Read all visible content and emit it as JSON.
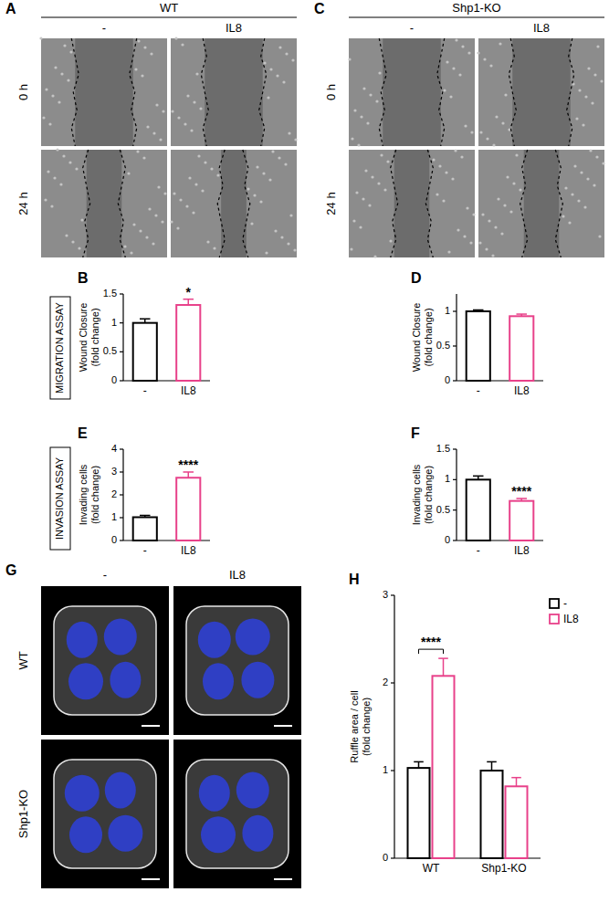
{
  "panels": [
    {
      "label": "A",
      "header": "WT",
      "columns": [
        "-",
        "IL8"
      ],
      "rows": [
        "0 h",
        "24 h"
      ]
    },
    {
      "label": "C",
      "header": "Shp1-KO",
      "columns": [
        "-",
        "IL8"
      ],
      "rows": [
        "0 h",
        "24 h"
      ]
    },
    {
      "label": "G",
      "columns": [
        "-",
        "IL8"
      ],
      "rows": [
        "WT",
        "Shp1-KO"
      ]
    }
  ],
  "side_labels": [
    "MIGRATION ASSAY",
    "INVASION ASSAY"
  ],
  "chart_data": [
    {
      "panel": "B",
      "type": "bar",
      "categories": [
        "-",
        "IL8"
      ],
      "values": [
        1.0,
        1.31
      ],
      "errors": [
        0.07,
        0.1
      ],
      "colors": [
        "#000000",
        "#e8418a"
      ],
      "ylabel": "Wound Closure (fold change)",
      "ylim": [
        0,
        1.5
      ],
      "yticks": [
        0,
        0.5,
        1,
        1.5
      ],
      "annotations": [
        "*"
      ]
    },
    {
      "panel": "D",
      "type": "bar",
      "categories": [
        "-",
        "IL8"
      ],
      "values": [
        1.0,
        0.93
      ],
      "errors": [
        0.02,
        0.03
      ],
      "colors": [
        "#000000",
        "#e8418a"
      ],
      "ylabel": "Wound Closure (fold change)",
      "ylim": [
        0,
        1.25
      ],
      "yticks": [
        0,
        0.5,
        1
      ]
    },
    {
      "panel": "E",
      "type": "bar",
      "categories": [
        "-",
        "IL8"
      ],
      "values": [
        1.02,
        2.75
      ],
      "errors": [
        0.08,
        0.25
      ],
      "colors": [
        "#000000",
        "#e8418a"
      ],
      "ylabel": "Invading cells (fold change)",
      "ylim": [
        0,
        4
      ],
      "yticks": [
        0,
        1,
        2,
        3,
        4
      ],
      "annotations": [
        "****"
      ]
    },
    {
      "panel": "F",
      "type": "bar",
      "categories": [
        "-",
        "IL8"
      ],
      "values": [
        1.0,
        0.65
      ],
      "errors": [
        0.06,
        0.04
      ],
      "colors": [
        "#000000",
        "#e8418a"
      ],
      "ylabel": "Invading cells (fold change)",
      "ylim": [
        0,
        1.5
      ],
      "yticks": [
        0,
        0.5,
        1,
        1.5
      ],
      "annotations": [
        "****"
      ]
    },
    {
      "panel": "H",
      "type": "bar",
      "categories": [
        "WT",
        "Shp1-KO"
      ],
      "series": [
        {
          "name": "-",
          "color": "#000000",
          "values": [
            1.03,
            1.0
          ],
          "errors": [
            0.07,
            0.1
          ]
        },
        {
          "name": "IL8",
          "color": "#e8418a",
          "values": [
            2.08,
            0.82
          ],
          "errors": [
            0.2,
            0.1
          ]
        }
      ],
      "ylabel": "Ruffle area / cell (fold change)",
      "ylim": [
        0,
        3
      ],
      "yticks": [
        0,
        1,
        2,
        3
      ],
      "legend": "top-right",
      "annotations": [
        "****"
      ]
    }
  ]
}
